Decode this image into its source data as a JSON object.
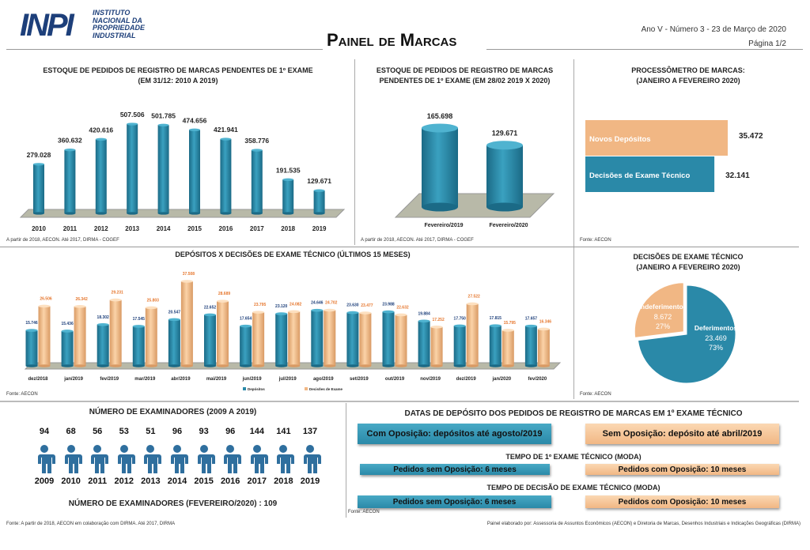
{
  "header": {
    "logo_mark": "INPI",
    "logo_text": [
      "INSTITUTO",
      "NACIONAL DA",
      "PROPRIEDADE",
      "INDUSTRIAL"
    ],
    "title": "Painel de Marcas",
    "issue": "Ano V - Número 3 - 23 de Março de 2020",
    "page": "Página 1/2"
  },
  "colors": {
    "teal": "#2a89a8",
    "orange": "#f1b784",
    "orange_label": "#e6772e",
    "navy": "#1d3f7a"
  },
  "chart_data": [
    {
      "type": "bar",
      "title": "ESTOQUE DE PEDIDOS DE REGISTRO DE MARCAS PENDENTES DE 1º EXAME",
      "subtitle": "(EM 31/12: 2010 A 2019)",
      "categories": [
        "2010",
        "2011",
        "2012",
        "2013",
        "2014",
        "2015",
        "2016",
        "2017",
        "2018",
        "2019"
      ],
      "values": [
        279028,
        360632,
        420616,
        507506,
        501785,
        474656,
        421941,
        358776,
        191535,
        129671
      ],
      "labels": [
        "279.028",
        "360.632",
        "420.616",
        "507.506",
        "501.785",
        "474.656",
        "421.941",
        "358.776",
        "191.535",
        "129.671"
      ],
      "source": "A partir de 2018, AECON. Até 2017, DIRMA - COGEF"
    },
    {
      "type": "bar",
      "title": "ESTOQUE DE PEDIDOS DE REGISTRO DE MARCAS",
      "subtitle": "PENDENTES DE 1º EXAME (EM 28/02 2019 X 2020)",
      "categories": [
        "Fevereiro/2019",
        "Fevereiro/2020"
      ],
      "values": [
        165698,
        129671
      ],
      "labels": [
        "165.698",
        "129.671"
      ],
      "source": "A partir de 2018, AECON. Até 2017, DIRMA - COGEF"
    },
    {
      "type": "bar",
      "orientation": "horizontal",
      "title": "PROCESSÔMETRO DE MARCAS:",
      "subtitle": "(JANEIRO A FEVEREIRO 2020)",
      "categories": [
        "Novos Depósitos",
        "Decisões de Exame Técnico"
      ],
      "values": [
        35472,
        32141
      ],
      "labels": [
        "35.472",
        "32.141"
      ],
      "source": "Fonte: AECON"
    },
    {
      "type": "bar",
      "title": "DEPÓSITOS X DECISÕES DE EXAME TÉCNICO (ÚLTIMOS 15 MESES)",
      "categories": [
        "dez/2018",
        "jan/2019",
        "fev/2019",
        "mar/2019",
        "abr/2019",
        "mai/2019",
        "jun/2019",
        "jul/2019",
        "ago/2019",
        "set/2019",
        "out/2019",
        "nov/2019",
        "dez/2019",
        "jan/2020",
        "fev/2020"
      ],
      "series": [
        {
          "name": "Depósitos",
          "values": [
            15746,
            15436,
            18302,
            17545,
            20547,
            22652,
            17654,
            23120,
            24646,
            23630,
            23988,
            19884,
            17750,
            17815,
            17657
          ],
          "labels": [
            "15.746",
            "15.436",
            "18.302",
            "17.545",
            "20.547",
            "22.652",
            "17.654",
            "23.120",
            "24.646",
            "23.630",
            "23.988",
            "19.884",
            "17.750",
            "17.815",
            "17.657"
          ]
        },
        {
          "name": "Decisões de Exame",
          "values": [
            26506,
            26342,
            29231,
            25803,
            37508,
            28689,
            23795,
            24082,
            24702,
            23477,
            22632,
            17252,
            27522,
            15795,
            16346
          ],
          "labels": [
            "26.506",
            "26.342",
            "29.231",
            "25.803",
            "37.508",
            "28.689",
            "23.795",
            "24.082",
            "24.702",
            "23.477",
            "22.632",
            "17.252",
            "27.522",
            "15.795",
            "16.346"
          ]
        }
      ],
      "legend": "bottom",
      "source": "Fonte: AECON"
    },
    {
      "type": "pie",
      "title": "DECISÕES DE EXAME TÉCNICO",
      "subtitle": "(JANEIRO A FEVEREIRO 2020)",
      "slices": [
        {
          "name": "Deferimentos",
          "value": 23469,
          "label": "23.469",
          "percent": "73%"
        },
        {
          "name": "Indeferimentos",
          "value": 8672,
          "label": "8.672",
          "percent": "27%"
        }
      ],
      "source": "Fonte: AECON"
    }
  ],
  "examiners": {
    "title": "NÚMERO DE EXAMINADORES (2009 A 2019)",
    "years": [
      "2009",
      "2010",
      "2011",
      "2012",
      "2013",
      "2014",
      "2015",
      "2016",
      "2017",
      "2018",
      "2019"
    ],
    "counts": [
      "94",
      "68",
      "56",
      "53",
      "51",
      "96",
      "93",
      "96",
      "144",
      "141",
      "137"
    ],
    "current": "NÚMERO DE EXAMINADORES (FEVEREIRO/2020) : 109",
    "source": "Fonte: A partir de 2018, AECON em colaboração com DIRMA. Até 2017, DIRMA"
  },
  "dates": {
    "title": "DATAS DE DEPÓSITO DOS PEDIDOS DE REGISTRO DE MARCAS EM 1º EXAME  TÉCNICO",
    "com_oposicao": "Com Oposição: depósitos até agosto/2019",
    "sem_oposicao": "Sem Oposição: depósito até abril/2019",
    "t1_title": "TEMPO DE  1º EXAME  TÉCNICO (MODA)",
    "t1_sem": "Pedidos sem Oposição: 6 meses",
    "t1_com": "Pedidos com Oposição: 10 meses",
    "t2_title": "TEMPO DE  DECISÃO DE EXAME TÉCNICO (MODA)",
    "t2_sem": "Pedidos sem Oposição: 6 meses",
    "t2_com": "Pedidos com Oposição: 10 meses",
    "source": "Fonte: AECON"
  },
  "footer": {
    "credit": "Painel elaborado por: Assessoria de Assuntos Econômicos (AECON) e Diretoria de Marcas, Desenhos Industriais e Indicações Geográficas (DIRMA)"
  }
}
